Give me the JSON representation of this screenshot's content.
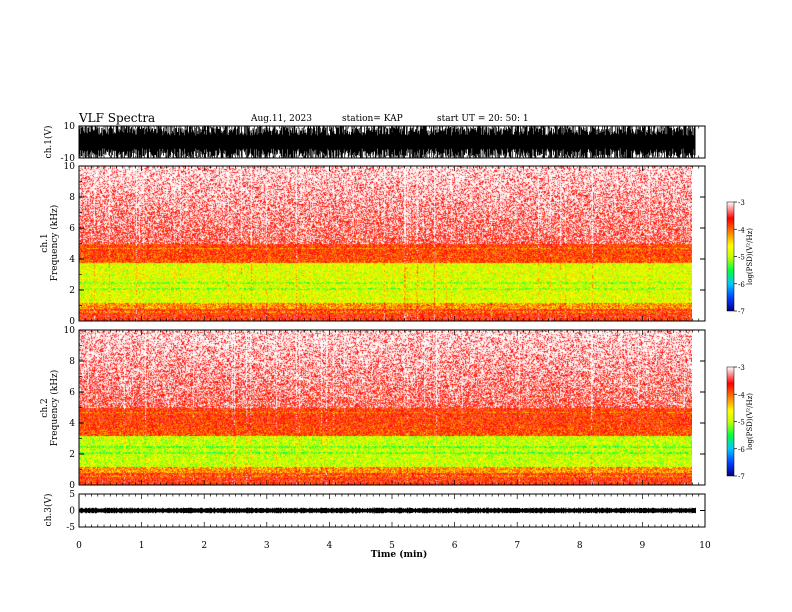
{
  "header": {
    "title": "VLF Spectra",
    "date": "Aug.11, 2023",
    "station": "station= KAP",
    "start": "start  UT  =   20: 50: 1"
  },
  "chart_data": {
    "type": "heatmap",
    "x_axis": {
      "label": "Time  (min)",
      "range": [
        0,
        10
      ],
      "ticks": [
        "0",
        "1",
        "2",
        "3",
        "4",
        "5",
        "6",
        "7",
        "8",
        "9",
        "10"
      ]
    },
    "panels": [
      {
        "id": "ch1-waveform",
        "type": "line",
        "ylabel": "ch.1(V)",
        "ylim": [
          -10,
          10
        ],
        "ticks": [
          "10",
          "-10"
        ]
      },
      {
        "id": "ch1-spectrogram",
        "type": "heatmap",
        "ylabel_top": "ch.1",
        "ylabel": "Frequency  (kHz)",
        "ylim": [
          0,
          10
        ],
        "ticks": [
          "0",
          "2",
          "4",
          "6",
          "8",
          "10"
        ]
      },
      {
        "id": "ch2-spectrogram",
        "type": "heatmap",
        "ylabel_top": "ch.2",
        "ylabel": "Frequency  (kHz)",
        "ylim": [
          0,
          10
        ],
        "ticks": [
          "0",
          "2",
          "4",
          "6",
          "8",
          "10"
        ]
      },
      {
        "id": "ch3-waveform",
        "type": "line",
        "ylabel": "ch.3(V)",
        "ylim": [
          -5,
          5
        ],
        "ticks": [
          "5",
          "0",
          "-5"
        ]
      }
    ],
    "colorbar": {
      "label": "log(PSD)(V²/Hz)",
      "range": [
        -7,
        -3
      ],
      "ticks": [
        "-3",
        "-4",
        "-5",
        "-6",
        "-7"
      ],
      "colors": [
        "#000080",
        "#0040ff",
        "#00c8ff",
        "#00ff40",
        "#c8ff00",
        "#ffff00",
        "#ff8000",
        "#ff0000",
        "#ffffff"
      ]
    },
    "data_extent_min": 9.85
  }
}
